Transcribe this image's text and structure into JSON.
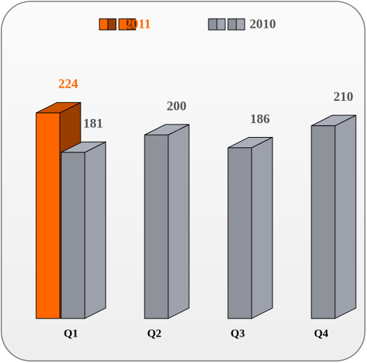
{
  "chart_data": {
    "type": "bar3d",
    "categories": [
      "Q1",
      "Q2",
      "Q3",
      "Q4"
    ],
    "series": [
      {
        "name": "2011",
        "color": "#ff6600",
        "values": [
          224,
          null,
          null,
          null
        ]
      },
      {
        "name": "2010",
        "color": "#8e929b",
        "values": [
          181,
          200,
          186,
          210
        ]
      }
    ],
    "legend": "top"
  }
}
